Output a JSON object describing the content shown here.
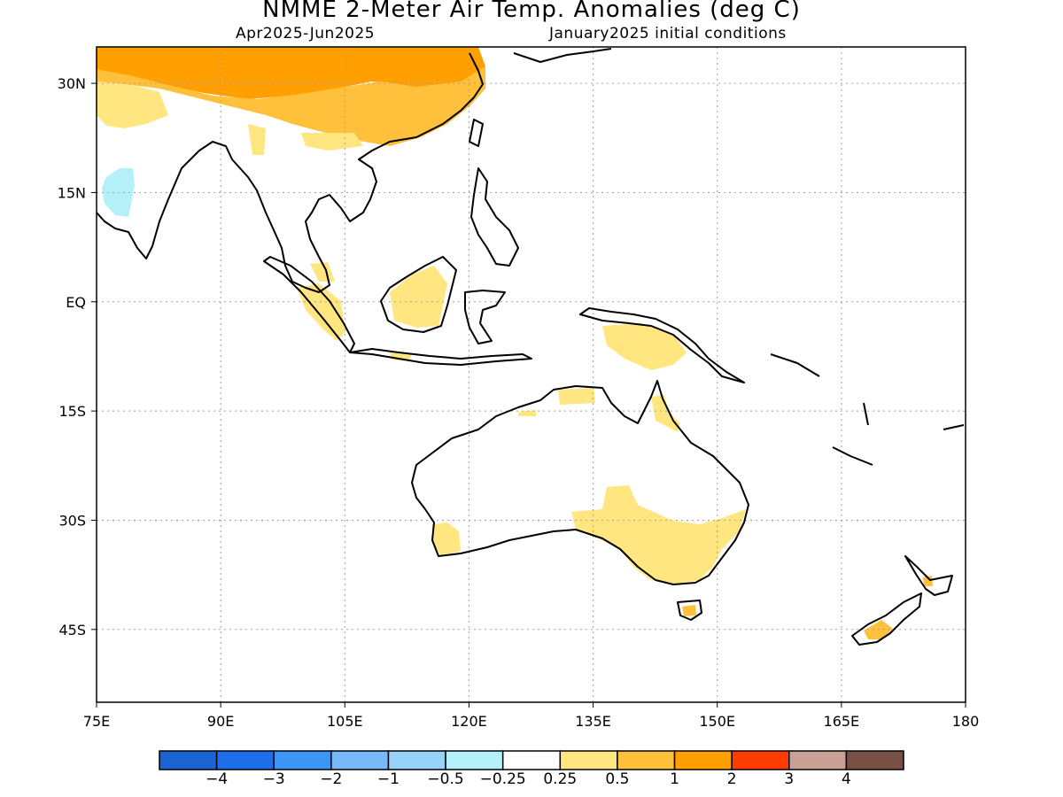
{
  "title": "NMME 2-Meter Air Temp. Anomalies (deg C)",
  "subtitle_left": "Apr2025-Jun2025",
  "subtitle_right": "January2025 initial conditions",
  "map": {
    "lon_range": [
      75,
      180
    ],
    "lat_range": [
      -55,
      35
    ],
    "lon_ticks": [
      "75E",
      "90E",
      "105E",
      "120E",
      "135E",
      "150E",
      "165E",
      "180"
    ],
    "lat_ticks": [
      "30N",
      "15N",
      "EQ",
      "15S",
      "30S",
      "45S"
    ],
    "gridlines": "dotted",
    "land_outline_color": "#000000"
  },
  "anomaly_regions": [
    {
      "region": "China / Tibetan Plateau",
      "category": "1 to 2",
      "color": "#ffa000"
    },
    {
      "region": "Southern China",
      "category": "0.5 to 1",
      "color": "#ffc03c"
    },
    {
      "region": "Northern India",
      "category": "0.25 to 0.5",
      "color": "#ffe680"
    },
    {
      "region": "Western India coast",
      "category": "-0.5 to -0.25",
      "color": "#b4f0fa"
    },
    {
      "region": "Sumatra",
      "category": "0.25 to 0.5",
      "color": "#ffe680"
    },
    {
      "region": "Borneo",
      "category": "0.25 to 0.5",
      "color": "#ffe680"
    },
    {
      "region": "New Guinea",
      "category": "0.25 to 0.5",
      "color": "#ffe680"
    },
    {
      "region": "Northern Australia",
      "category": "0.25 to 0.5",
      "color": "#ffe680"
    },
    {
      "region": "Southeast Australia",
      "category": "0.25 to 0.5",
      "color": "#ffe680"
    },
    {
      "region": "Southwest Australia",
      "category": "0.25 to 0.5",
      "color": "#ffe680"
    },
    {
      "region": "Tasmania",
      "category": "0.5 to 1",
      "color": "#ffc03c"
    },
    {
      "region": "New Zealand South Island",
      "category": "0.5 to 1",
      "color": "#ffc03c"
    }
  ],
  "colorbar": {
    "colors": [
      "#1964d2",
      "#1e6eeb",
      "#3c96f5",
      "#78b9fa",
      "#96d2fa",
      "#b4f0fa",
      "#ffffff",
      "#ffe680",
      "#ffc03c",
      "#ffa000",
      "#ff3c00",
      "#c8a096",
      "#785046"
    ],
    "labels": [
      "-4",
      "-3",
      "-2",
      "-1",
      "-0.5",
      "-0.25",
      "0.25",
      "0.5",
      "1",
      "2",
      "3",
      "4"
    ]
  }
}
